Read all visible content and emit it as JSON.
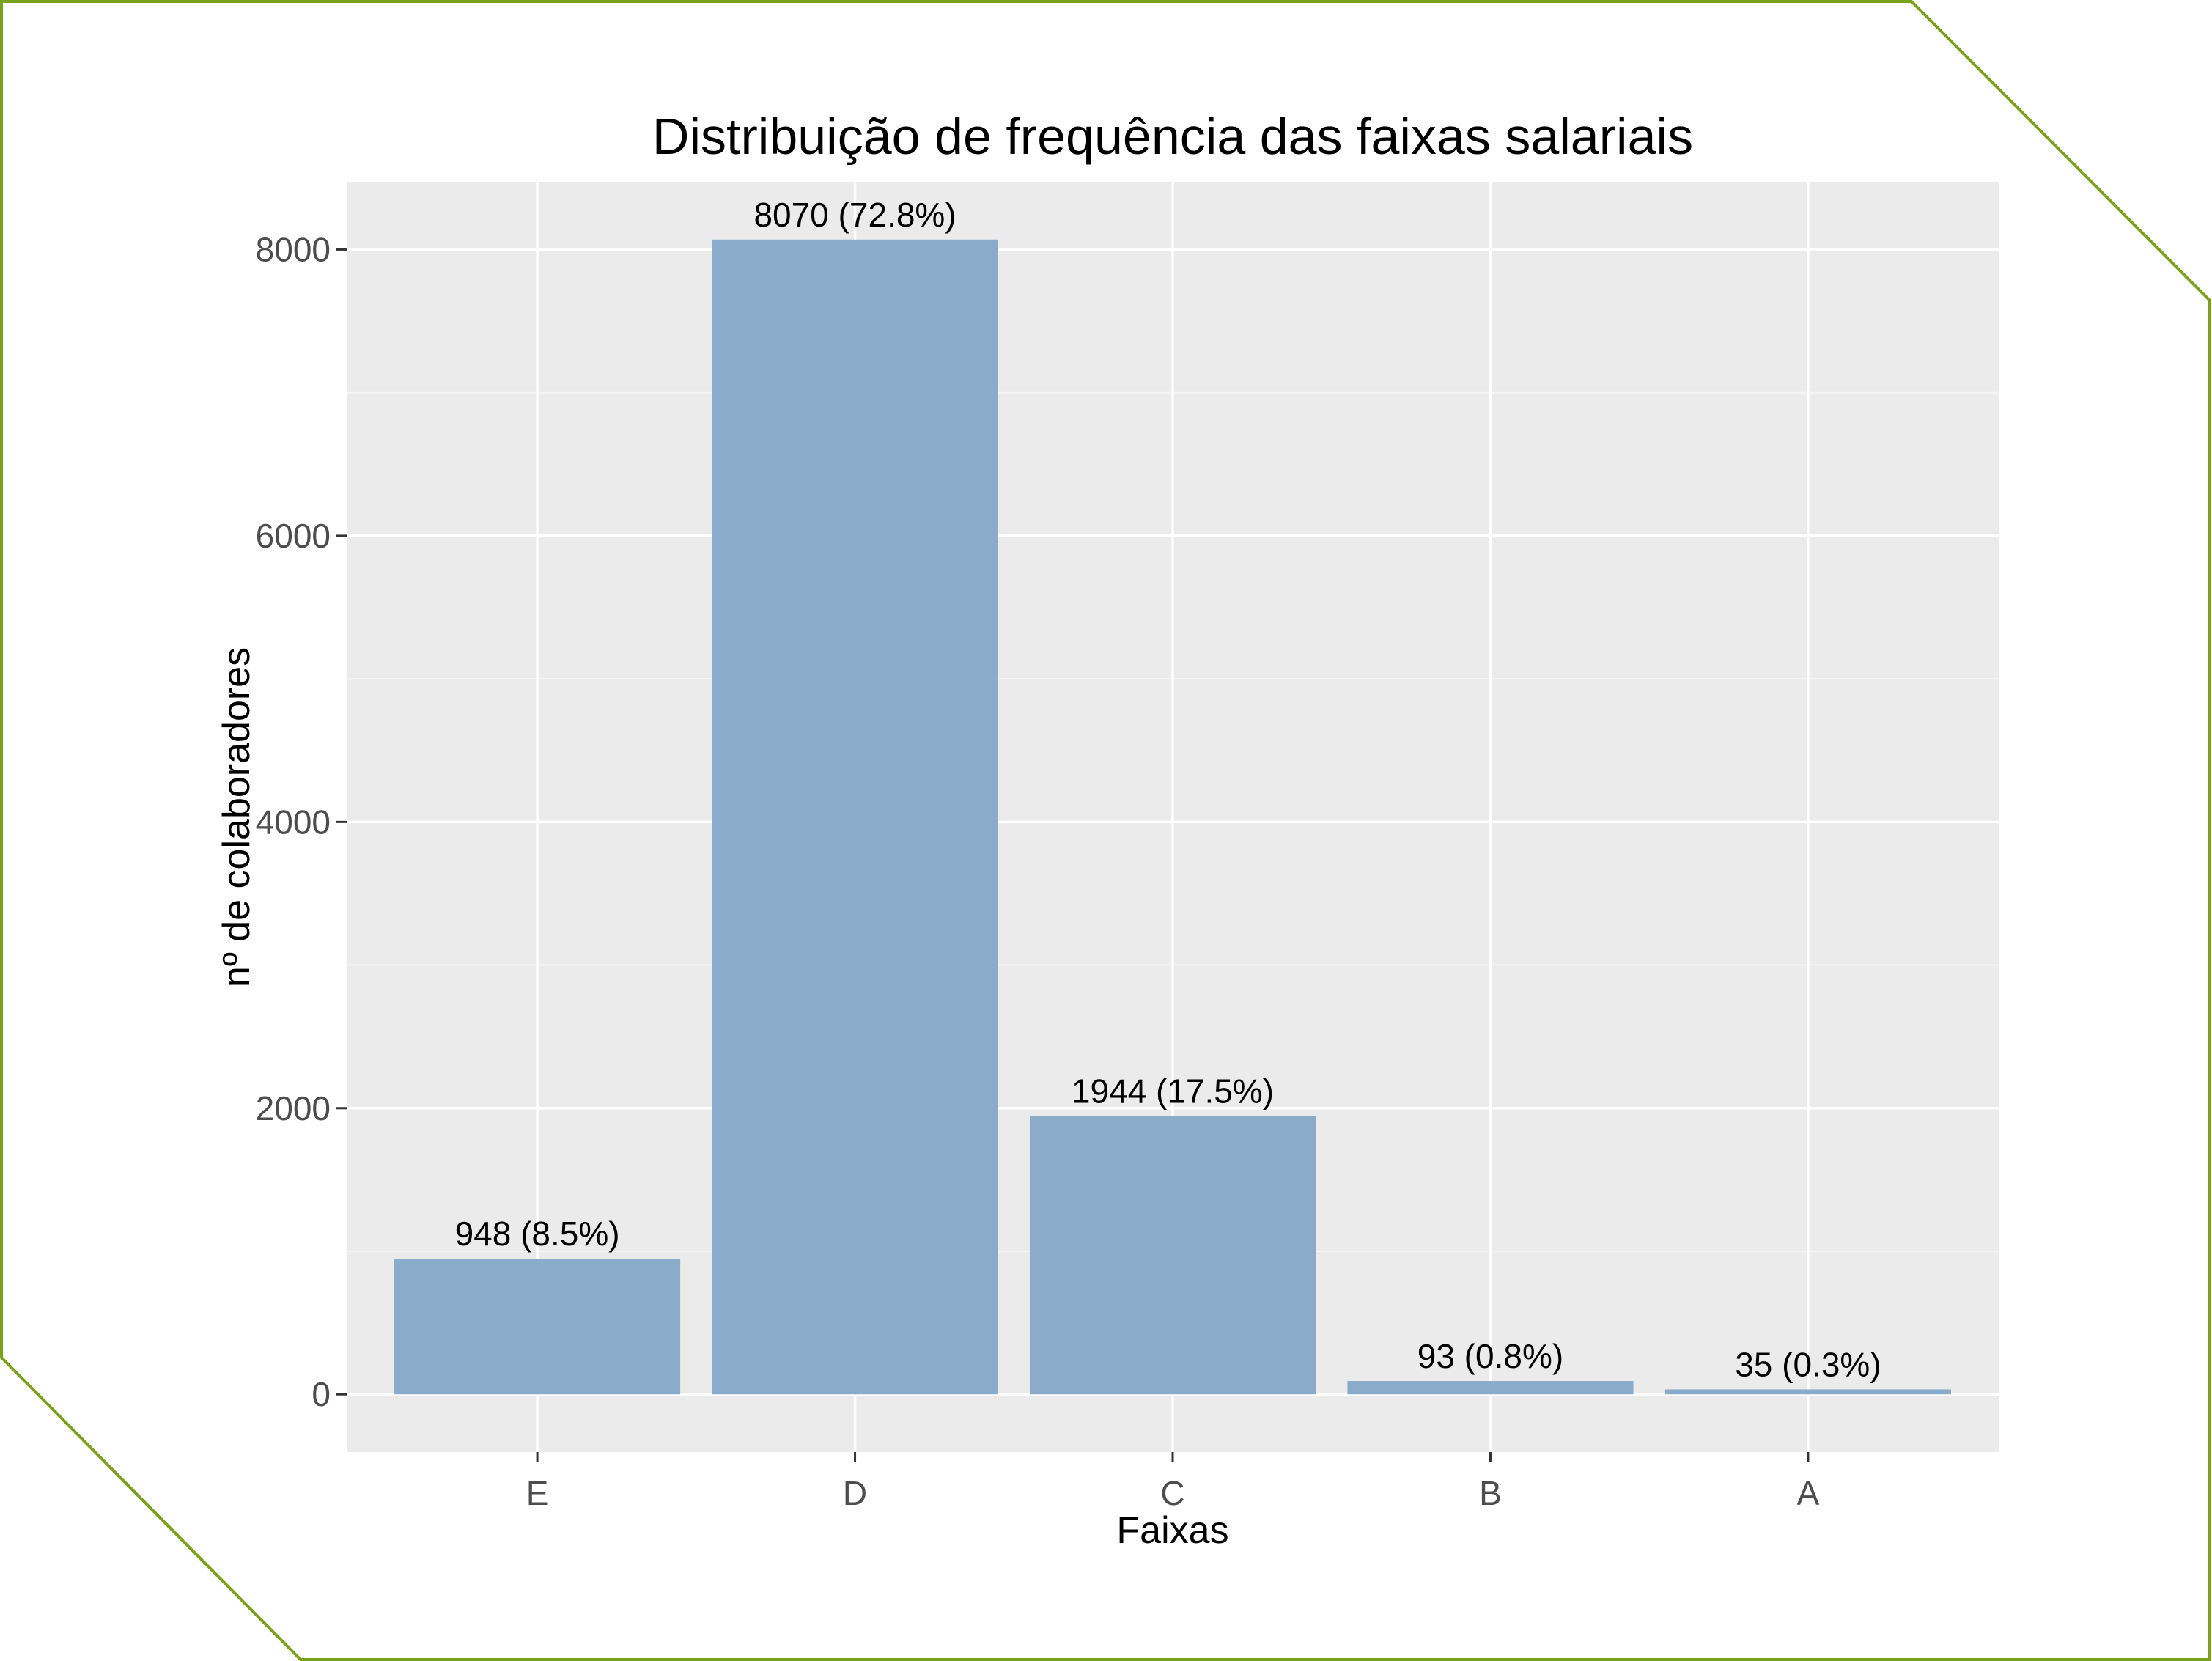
{
  "colors": {
    "frame": "#7aa11c",
    "panel": "#ebebeb",
    "grid_major": "#ffffff",
    "grid_minor": "#f5f5f5",
    "bar": "#8aabca",
    "tick": "#333333"
  },
  "chart_data": {
    "type": "bar",
    "title": "Distribuição de frequência das faixas salariais",
    "xlabel": "Faixas",
    "ylabel": "nº de colaboradores",
    "categories": [
      "E",
      "D",
      "C",
      "B",
      "A"
    ],
    "values": [
      948,
      8070,
      1944,
      93,
      35
    ],
    "labels": [
      "948 (8.5%)",
      "8070 (72.8%)",
      "1944 (17.5%)",
      "93 (0.8%)",
      "35 (0.3%)"
    ],
    "yticks": [
      0,
      2000,
      4000,
      6000,
      8000
    ],
    "ytick_labels": [
      "0",
      "2000",
      "4000",
      "6000",
      "8000"
    ],
    "ylim": [
      -403.5,
      8473.5
    ],
    "grid": true,
    "legend": "none"
  }
}
